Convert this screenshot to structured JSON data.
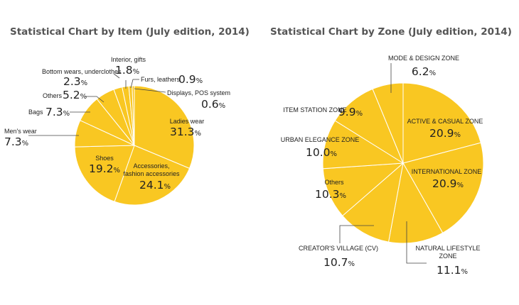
{
  "colors": {
    "slice": "#f9c722",
    "stroke": "#ffffff",
    "leader": "#444444",
    "title": "#555555"
  },
  "percent_sign": "%",
  "chart_data": [
    {
      "type": "pie",
      "title": "Statistical Chart by Item (July edition, 2014)",
      "unit": "%",
      "slices": [
        {
          "label": "Ladies wear",
          "value": 31.3
        },
        {
          "label": "Accessories, fashion accessories",
          "value": 24.1
        },
        {
          "label": "Shoes",
          "value": 19.2
        },
        {
          "label": "Men's wear",
          "value": 7.3
        },
        {
          "label": "Bags",
          "value": 7.3
        },
        {
          "label": "Others",
          "value": 5.2
        },
        {
          "label": "Bottom wears, underclothes",
          "value": 2.3
        },
        {
          "label": "Interior, gifts",
          "value": 1.8
        },
        {
          "label": "Furs, leathers",
          "value": 0.9
        },
        {
          "label": "Displays, POS system",
          "value": 0.6
        }
      ]
    },
    {
      "type": "pie",
      "title": "Statistical Chart by Zone (July edition, 2014)",
      "unit": "%",
      "slices": [
        {
          "label": "ACTIVE & CASUAL ZONE",
          "value": 20.9
        },
        {
          "label": "INTERNATIONAL ZONE",
          "value": 20.9
        },
        {
          "label": "NATURAL LIFESTYLE ZONE",
          "value": 11.1
        },
        {
          "label": "CREATOR'S VILLAGE (CV)",
          "value": 10.7
        },
        {
          "label": "Others",
          "value": 10.3
        },
        {
          "label": "URBAN ELEGANCE ZONE",
          "value": 10.0
        },
        {
          "label": "ITEM STATION ZONE",
          "value": 9.9
        },
        {
          "label": "MODE & DESIGN ZONE",
          "value": 6.2
        }
      ]
    }
  ]
}
